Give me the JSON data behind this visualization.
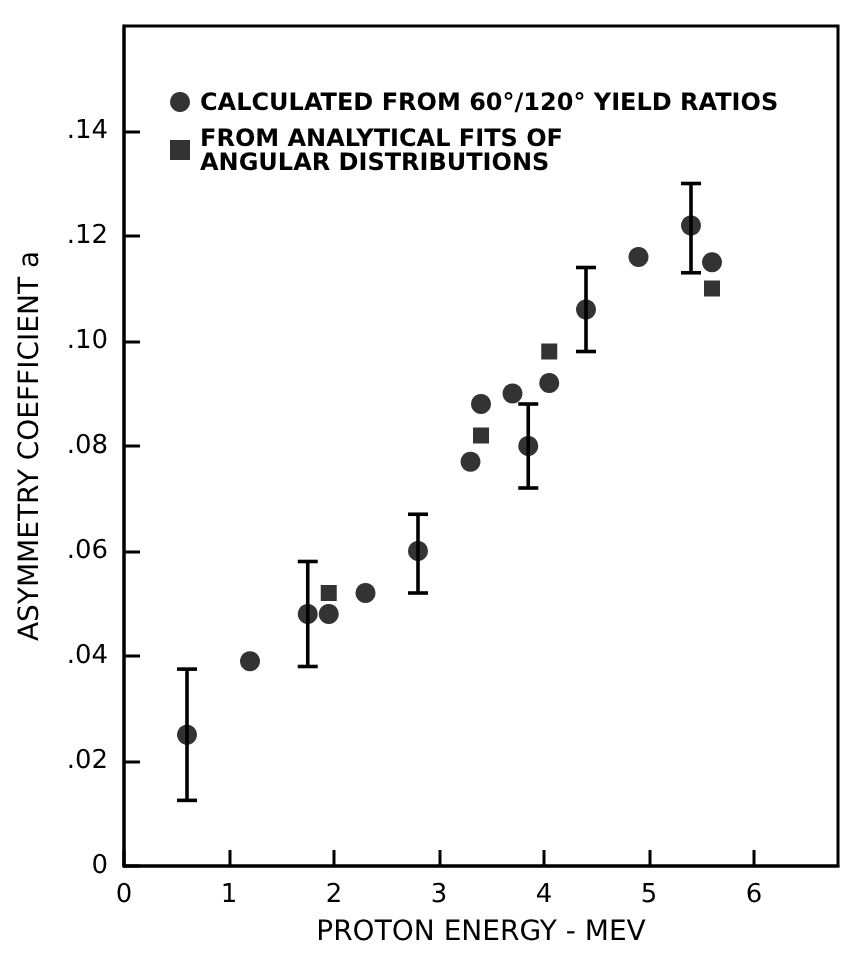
{
  "chart_data": {
    "type": "scatter",
    "xlabel": "PROTON ENERGY - MEV",
    "ylabel": "ASYMMETRY COEFFICIENT a",
    "xlim": [
      0,
      6.8
    ],
    "xticks": [
      0,
      1,
      2,
      3,
      4,
      5,
      6
    ],
    "ylim": [
      0,
      0.16
    ],
    "yticks": [
      {
        "value": 0,
        "label": "0"
      },
      {
        "value": 0.02,
        "label": ".02"
      },
      {
        "value": 0.04,
        "label": ".04"
      },
      {
        "value": 0.06,
        "label": ".06"
      },
      {
        "value": 0.08,
        "label": ".08"
      },
      {
        "value": 0.1,
        "label": ".10"
      },
      {
        "value": 0.12,
        "label": ".12"
      },
      {
        "value": 0.14,
        "label": ".14"
      }
    ],
    "grid": false,
    "legend": "top left",
    "series": [
      {
        "name": "CALCULATED FROM 60°/120° YIELD RATIOS",
        "color": "#000000",
        "marker": "circle",
        "x": [
          0.6,
          1.2,
          1.75,
          1.95,
          2.3,
          2.8,
          3.3,
          3.4,
          3.7,
          3.85,
          4.05,
          4.4,
          4.9,
          5.4,
          5.6
        ],
        "values": [
          0.025,
          0.039,
          0.048,
          0.048,
          0.052,
          0.06,
          0.077,
          0.088,
          0.09,
          0.08,
          0.092,
          0.106,
          0.116,
          0.122,
          0.115
        ],
        "errors": [
          [
            0.0125,
            0.0375
          ],
          null,
          [
            0.038,
            0.058
          ],
          null,
          null,
          [
            0.052,
            0.067
          ],
          null,
          null,
          null,
          [
            0.072,
            0.088
          ],
          null,
          [
            0.098,
            0.114
          ],
          null,
          [
            0.113,
            0.13
          ],
          null
        ]
      },
      {
        "name": "FROM ANALYTICAL FITS OF\nANGULAR DISTRIBUTIONS",
        "color": "#000000",
        "marker": "square",
        "x": [
          1.95,
          3.4,
          4.05,
          5.6
        ],
        "values": [
          0.052,
          0.082,
          0.098,
          0.11
        ]
      }
    ]
  }
}
